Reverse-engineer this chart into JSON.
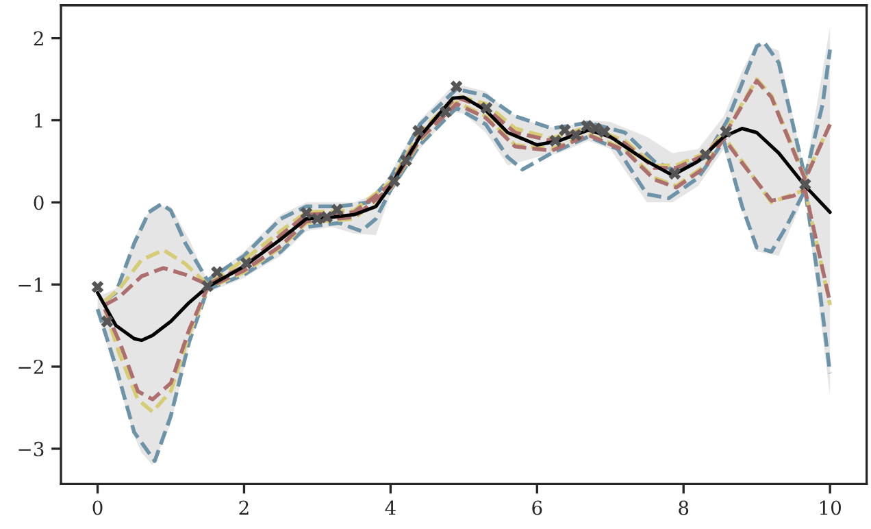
{
  "chart_data": {
    "type": "line",
    "xlim": [
      -0.5,
      10.5
    ],
    "ylim": [
      -3.43,
      2.4
    ],
    "xticks": [
      0,
      2,
      4,
      6,
      8,
      10
    ],
    "yticks": [
      {
        "value": -3,
        "label": "−3"
      },
      {
        "value": -2,
        "label": "−2"
      },
      {
        "value": -1,
        "label": "−1"
      },
      0,
      1,
      2
    ],
    "grid": false,
    "series": [
      {
        "color": "#000000",
        "line_style": "solid",
        "x": [
          0,
          0.25,
          0.5,
          0.6,
          0.75,
          1,
          1.25,
          1.5,
          2,
          2.5,
          2.85,
          3.2,
          3.5,
          3.8,
          4,
          4.4,
          4.85,
          5,
          5.3,
          5.6,
          6,
          6.3,
          6.7,
          7,
          7.5,
          7.85,
          8.2,
          8.55,
          8.8,
          9.0,
          9.3,
          9.66,
          10
        ],
        "values": [
          -1.1,
          -1.5,
          -1.66,
          -1.68,
          -1.62,
          -1.45,
          -1.22,
          -1.03,
          -0.78,
          -0.45,
          -0.2,
          -0.18,
          -0.15,
          -0.05,
          0.2,
          0.8,
          1.27,
          1.28,
          1.12,
          0.85,
          0.7,
          0.75,
          0.88,
          0.8,
          0.5,
          0.33,
          0.5,
          0.8,
          0.9,
          0.85,
          0.6,
          0.2,
          -0.12
        ],
        "lower": [
          -1.35,
          -2.1,
          -2.85,
          -3.05,
          -3.2,
          -2.7,
          -1.75,
          -1.1,
          -0.92,
          -0.65,
          -0.35,
          -0.3,
          -0.38,
          -0.4,
          0.1,
          0.65,
          1.1,
          1.08,
          0.85,
          0.45,
          0.55,
          0.6,
          0.75,
          0.65,
          0.0,
          0.0,
          0.2,
          0.65,
          -0.1,
          -0.6,
          -0.65,
          0.1,
          -2.36
        ],
        "upper": [
          -1.15,
          -1.05,
          -0.45,
          -0.25,
          -0.05,
          -0.05,
          -0.45,
          -0.95,
          -0.6,
          -0.15,
          0.0,
          0.0,
          0.0,
          0.1,
          0.35,
          1.0,
          1.42,
          1.42,
          1.35,
          1.1,
          0.95,
          0.9,
          1.0,
          0.98,
          0.8,
          0.6,
          0.65,
          1.05,
          1.6,
          1.95,
          1.85,
          0.35,
          2.14
        ]
      },
      {
        "type": "line",
        "color": "#6d93a9",
        "line_style": "dashed",
        "x": [
          0.1,
          0.25,
          0.5,
          0.7,
          0.87,
          1.0,
          1.2,
          1.5,
          2,
          2.5,
          2.85,
          3.3,
          3.7,
          4,
          4.4,
          4.9,
          5.3,
          5.7,
          6.2,
          6.7,
          7.2,
          7.6,
          7.9,
          8.3,
          8.6,
          9.0,
          9.1,
          9.3,
          9.66,
          9.9,
          10
        ],
        "values": [
          -1.2,
          -1.1,
          -0.5,
          -0.12,
          -0.02,
          -0.1,
          -0.5,
          -0.95,
          -0.65,
          -0.2,
          -0.05,
          -0.05,
          0.0,
          0.3,
          0.95,
          1.38,
          1.3,
          1.05,
          0.9,
          0.97,
          0.85,
          0.5,
          0.38,
          0.55,
          1.0,
          1.9,
          1.95,
          1.7,
          0.3,
          1.2,
          1.86
        ]
      },
      {
        "type": "line",
        "color": "#6d93a9",
        "line_style": "dashed",
        "x": [
          0,
          0.25,
          0.5,
          0.78,
          1.0,
          1.25,
          1.5,
          2,
          2.5,
          2.85,
          3.3,
          3.6,
          3.8,
          4,
          4.4,
          4.9,
          5.3,
          5.6,
          5.8,
          6.2,
          6.7,
          7.1,
          7.5,
          7.8,
          8.2,
          8.55,
          8.8,
          9.0,
          9.2,
          9.4,
          9.66,
          9.85,
          10
        ],
        "values": [
          -1.3,
          -2.0,
          -2.8,
          -3.15,
          -2.6,
          -1.7,
          -1.06,
          -0.88,
          -0.6,
          -0.3,
          -0.25,
          -0.35,
          -0.2,
          0.15,
          0.7,
          1.15,
          0.95,
          0.55,
          0.4,
          0.6,
          0.8,
          0.65,
          0.1,
          0.05,
          0.3,
          0.75,
          -0.05,
          -0.55,
          -0.6,
          -0.3,
          0.15,
          -1.0,
          -2.08
        ]
      },
      {
        "type": "line",
        "color": "#d6cc75",
        "line_style": "dashed",
        "x": [
          0.1,
          0.3,
          0.6,
          0.9,
          1.2,
          1.5,
          2,
          2.5,
          2.85,
          3.5,
          4,
          4.4,
          4.9,
          5.3,
          5.7,
          6.2,
          6.7,
          7.2,
          7.6,
          7.9,
          8.3,
          8.6,
          9.0,
          9.2,
          9.66,
          10
        ],
        "values": [
          -1.2,
          -1.05,
          -0.7,
          -0.58,
          -0.75,
          -1.0,
          -0.7,
          -0.35,
          -0.12,
          -0.1,
          0.25,
          0.85,
          1.3,
          1.2,
          0.9,
          0.78,
          0.92,
          0.75,
          0.45,
          0.45,
          0.6,
          0.9,
          1.5,
          1.3,
          0.3,
          0.95
        ]
      },
      {
        "type": "line",
        "color": "#ad6e6e",
        "line_style": "dashed",
        "x": [
          0.1,
          0.3,
          0.6,
          0.9,
          1.2,
          1.5,
          2,
          2.5,
          2.85,
          3.5,
          4,
          4.4,
          4.9,
          5.3,
          5.7,
          6.2,
          6.7,
          7.2,
          7.6,
          7.9,
          8.3,
          8.6,
          9.0,
          9.2,
          9.66,
          10
        ],
        "values": [
          -1.25,
          -1.15,
          -0.9,
          -0.8,
          -0.88,
          -1.0,
          -0.78,
          -0.4,
          -0.15,
          -0.12,
          0.22,
          0.82,
          1.28,
          1.15,
          0.85,
          0.75,
          0.9,
          0.72,
          0.42,
          0.42,
          0.58,
          0.88,
          1.48,
          1.28,
          0.28,
          0.95
        ]
      },
      {
        "type": "line",
        "color": "#d6cc75",
        "line_style": "dashed",
        "x": [
          0.1,
          0.3,
          0.55,
          0.75,
          1.0,
          1.25,
          1.5,
          2,
          2.5,
          2.85,
          3.5,
          4,
          4.4,
          4.9,
          5.3,
          5.7,
          6.2,
          6.7,
          7.2,
          7.6,
          7.9,
          8.3,
          8.55,
          8.8,
          9.2,
          9.5,
          9.66,
          10
        ],
        "values": [
          -1.3,
          -1.85,
          -2.4,
          -2.55,
          -2.3,
          -1.6,
          -1.05,
          -0.85,
          -0.55,
          -0.25,
          -0.2,
          0.17,
          0.75,
          1.22,
          1.05,
          0.7,
          0.65,
          0.83,
          0.65,
          0.3,
          0.2,
          0.45,
          0.8,
          0.5,
          0.0,
          0.1,
          0.15,
          -1.25
        ]
      },
      {
        "type": "line",
        "color": "#ad6e6e",
        "line_style": "dashed",
        "x": [
          0.1,
          0.3,
          0.55,
          0.75,
          1.0,
          1.25,
          1.5,
          2,
          2.5,
          2.85,
          3.5,
          4,
          4.4,
          4.9,
          5.3,
          5.7,
          6.2,
          6.7,
          7.2,
          7.6,
          7.9,
          8.3,
          8.55,
          8.8,
          9.2,
          9.5,
          9.66,
          10
        ],
        "values": [
          -1.3,
          -1.7,
          -2.3,
          -2.4,
          -2.2,
          -1.55,
          -1.04,
          -0.83,
          -0.53,
          -0.23,
          -0.18,
          0.18,
          0.77,
          1.2,
          1.03,
          0.68,
          0.63,
          0.82,
          0.63,
          0.28,
          0.18,
          0.43,
          0.78,
          0.48,
          0.02,
          0.08,
          0.15,
          -1.22
        ]
      },
      {
        "type": "scatter",
        "color": "#555555",
        "marker": "cross",
        "x": [
          0,
          0.13,
          1.5,
          1.63,
          2.03,
          2.85,
          3.0,
          3.13,
          3.27,
          4.05,
          4.21,
          4.38,
          4.75,
          4.9,
          5.31,
          6.25,
          6.38,
          6.53,
          6.68,
          6.8,
          6.92,
          7.88,
          8.3,
          8.58,
          9.66
        ],
        "values": [
          -1.03,
          -1.45,
          -1.02,
          -0.85,
          -0.74,
          -0.13,
          -0.2,
          -0.18,
          -0.09,
          0.26,
          0.51,
          0.87,
          1.1,
          1.41,
          1.15,
          0.75,
          0.88,
          0.82,
          0.93,
          0.9,
          0.86,
          0.35,
          0.58,
          0.86,
          0.22
        ]
      }
    ]
  }
}
